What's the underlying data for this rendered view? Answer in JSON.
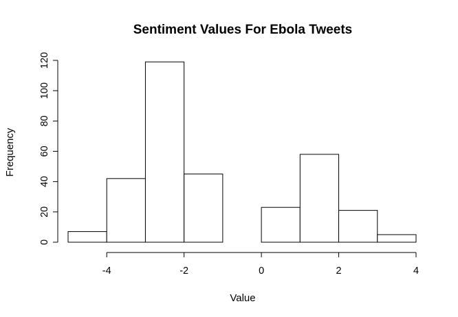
{
  "chart_data": {
    "type": "bar",
    "title": "Sentiment Values For Ebola Tweets",
    "xlabel": "Value",
    "ylabel": "Frequency",
    "bins": [
      {
        "from": -5,
        "to": -4,
        "count": 7
      },
      {
        "from": -4,
        "to": -3,
        "count": 42
      },
      {
        "from": -3,
        "to": -2,
        "count": 119
      },
      {
        "from": -2,
        "to": -1,
        "count": 45
      },
      {
        "from": -1,
        "to": 0,
        "count": 0
      },
      {
        "from": 0,
        "to": 1,
        "count": 23
      },
      {
        "from": 1,
        "to": 2,
        "count": 58
      },
      {
        "from": 2,
        "to": 3,
        "count": 21
      },
      {
        "from": 3,
        "to": 4,
        "count": 5
      }
    ],
    "xlim": [
      -5,
      4
    ],
    "ylim": [
      0,
      120
    ],
    "xticks": [
      -4,
      -2,
      0,
      2,
      4
    ],
    "yticks": [
      0,
      20,
      40,
      60,
      80,
      100,
      120
    ],
    "grid": false,
    "colors": {
      "bar_fill": "#ffffff",
      "bar_stroke": "#000000"
    }
  }
}
